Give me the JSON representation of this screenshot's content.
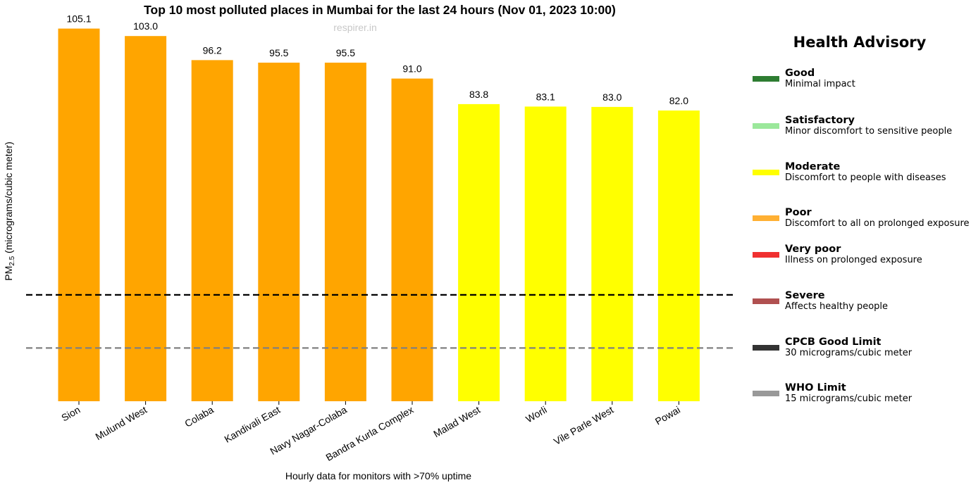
{
  "chart_data": {
    "type": "bar",
    "title": "Top 10 most polluted places in Mumbai for the last 24 hours (Nov 01, 2023 10:00)",
    "watermark": "respirer.in",
    "xlabel": "Hourly data for monitors with >70% uptime",
    "ylabel": {
      "prefix": "PM",
      "subscript": "2.5",
      "suffix": " (micrograms/cubic meter)"
    },
    "ylim": [
      0,
      108
    ],
    "categories": [
      "Sion",
      "Mulund West",
      "Colaba",
      "Kandivali East",
      "Navy Nagar-Colaba",
      "Bandra Kurla Complex",
      "Malad West",
      "Worli",
      "Vile Parle West",
      "Powai"
    ],
    "values": [
      105.1,
      103.0,
      96.2,
      95.5,
      95.5,
      91.0,
      83.8,
      83.1,
      83.0,
      82.0
    ],
    "value_labels": [
      "105.1",
      "103.0",
      "96.2",
      "95.5",
      "95.5",
      "91.0",
      "83.8",
      "83.1",
      "83.0",
      "82.0"
    ],
    "bar_colors": [
      "#FFA500",
      "#FFA500",
      "#FFA500",
      "#FFA500",
      "#FFA500",
      "#FFA500",
      "#FFFF00",
      "#FFFF00",
      "#FFFF00",
      "#FFFF00"
    ],
    "reference_lines": [
      {
        "name": "CPCB Good Limit",
        "value": 30,
        "color": "#000000",
        "style": "dashed"
      },
      {
        "name": "WHO Limit",
        "value": 15,
        "color": "#808080",
        "style": "dashed"
      }
    ],
    "grid": false,
    "legend_position": "right"
  },
  "legend": {
    "title": "Health Advisory",
    "items": [
      {
        "label": "Good",
        "desc": "Minimal impact",
        "color": "#2E7D32"
      },
      {
        "label": "Satisfactory",
        "desc": "Minor discomfort to sensitive people",
        "color": "#9BE89B"
      },
      {
        "label": "Moderate",
        "desc": "Discomfort to people with diseases",
        "color": "#FFFF00"
      },
      {
        "label": "Poor",
        "desc": "Discomfort to all on prolonged exposure",
        "color": "#FFB033"
      },
      {
        "label": "Very poor",
        "desc": "Illness on prolonged exposure",
        "color": "#F03030"
      },
      {
        "label": "Severe",
        "desc": "Affects healthy people",
        "color": "#B05050"
      },
      {
        "label": "CPCB Good Limit",
        "desc": "30 micrograms/cubic meter",
        "color": "#333333"
      },
      {
        "label": "WHO Limit",
        "desc": "15 micrograms/cubic meter",
        "color": "#999999"
      }
    ]
  }
}
